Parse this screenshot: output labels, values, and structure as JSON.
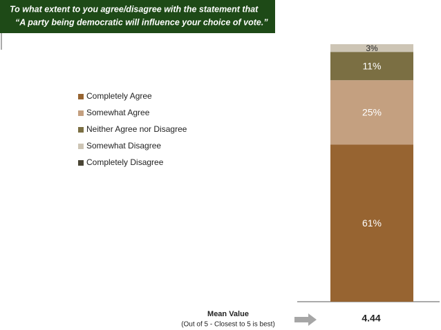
{
  "chart_data": {
    "type": "stacked_bar",
    "title_lines": [
      "To what extent to you agree/disagree with the statement that",
      "“A party being democratic will influence your choice of vote.”"
    ],
    "ylim": [
      0,
      100
    ],
    "series": [
      {
        "name": "Completely Agree",
        "color": "#976431",
        "values": [
          61
        ],
        "value_labels": [
          "61%"
        ]
      },
      {
        "name": "Somewhat Agree",
        "color": "#c4a080",
        "values": [
          25
        ],
        "value_labels": [
          "25%"
        ]
      },
      {
        "name": "Neither Agree nor Disagree",
        "color": "#7b6f43",
        "values": [
          11
        ],
        "value_labels": [
          "11%"
        ]
      },
      {
        "name": "Somewhat Disagree",
        "color": "#cdc5b5",
        "values": [
          3
        ],
        "value_labels": [
          "3%"
        ]
      },
      {
        "name": "Completely Disagree",
        "color": "#4a4535",
        "values": [
          0
        ],
        "value_labels": [
          null
        ]
      }
    ],
    "mean_label": "Mean Value",
    "mean_note": "(Out of 5 - Closest to 5 is best)",
    "mean_value": 4.44
  }
}
